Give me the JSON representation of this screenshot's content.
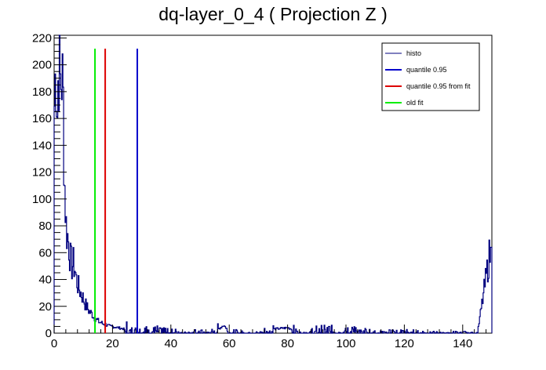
{
  "chart_data": {
    "type": "histogram",
    "title": "dq-layer_0_4 ( Projection Z )",
    "xlabel": "",
    "ylabel": "",
    "xlim": [
      0,
      150
    ],
    "ylim": [
      0,
      222
    ],
    "x_ticks": [
      0,
      20,
      40,
      60,
      80,
      100,
      120,
      140
    ],
    "y_ticks": [
      0,
      20,
      40,
      60,
      80,
      100,
      120,
      140,
      160,
      180,
      200,
      220
    ],
    "grid": false,
    "legend_position": "top-right",
    "histogram": {
      "name": "histo",
      "color": "#00007f",
      "bin_width": 0.25,
      "points": [
        [
          0,
          170
        ],
        [
          0.5,
          205
        ],
        [
          1,
          165
        ],
        [
          1.5,
          210
        ],
        [
          2,
          185
        ],
        [
          2.5,
          195
        ],
        [
          3,
          170
        ],
        [
          3.5,
          110
        ],
        [
          4,
          80
        ],
        [
          4.5,
          72
        ],
        [
          5,
          65
        ],
        [
          5.5,
          55
        ],
        [
          6,
          50
        ],
        [
          6.5,
          52
        ],
        [
          7,
          48
        ],
        [
          7.5,
          40
        ],
        [
          8,
          36
        ],
        [
          8.5,
          33
        ],
        [
          9,
          30
        ],
        [
          9.5,
          28
        ],
        [
          10,
          25
        ],
        [
          10.5,
          22
        ],
        [
          11,
          20
        ],
        [
          11.5,
          18
        ],
        [
          12,
          16
        ],
        [
          12.5,
          15
        ],
        [
          13,
          14
        ],
        [
          13.5,
          12
        ],
        [
          14,
          11
        ],
        [
          14.5,
          10
        ],
        [
          15,
          9
        ],
        [
          15.5,
          8
        ],
        [
          16,
          8
        ],
        [
          16.5,
          7
        ],
        [
          17,
          7
        ],
        [
          18,
          6
        ],
        [
          19,
          5
        ],
        [
          20,
          5
        ],
        [
          22,
          4
        ],
        [
          24,
          3
        ],
        [
          26,
          3
        ],
        [
          28,
          3
        ],
        [
          30,
          2
        ],
        [
          32,
          2
        ],
        [
          35,
          2
        ],
        [
          38,
          1.5
        ],
        [
          40,
          1.5
        ],
        [
          45,
          1
        ],
        [
          50,
          1
        ],
        [
          55,
          1
        ],
        [
          58,
          6
        ],
        [
          60,
          1
        ],
        [
          70,
          0.5
        ],
        [
          75,
          3
        ],
        [
          80,
          4
        ],
        [
          85,
          0.5
        ],
        [
          90,
          2
        ],
        [
          100,
          2
        ],
        [
          110,
          1
        ],
        [
          120,
          1
        ],
        [
          130,
          0.5
        ],
        [
          140,
          0.5
        ],
        [
          145,
          0.5
        ],
        [
          149.5,
          64
        ]
      ]
    },
    "vertical_lines": [
      {
        "name": "quantile 0.95",
        "x": 28.5,
        "y_top": 212,
        "color": "#0000cc"
      },
      {
        "name": "quantile 0.95 from fit",
        "x": 17.5,
        "y_top": 212,
        "color": "#dd0000"
      },
      {
        "name": "old fit",
        "x": 14,
        "y_top": 212,
        "color": "#00ee00"
      }
    ],
    "legend": [
      {
        "label": "histo",
        "color": "#00007f",
        "thin": true
      },
      {
        "label": "quantile 0.95",
        "color": "#0000cc",
        "thin": false
      },
      {
        "label": "quantile 0.95 from fit",
        "color": "#dd0000",
        "thin": false
      },
      {
        "label": "old fit",
        "color": "#00ee00",
        "thin": false
      }
    ]
  }
}
